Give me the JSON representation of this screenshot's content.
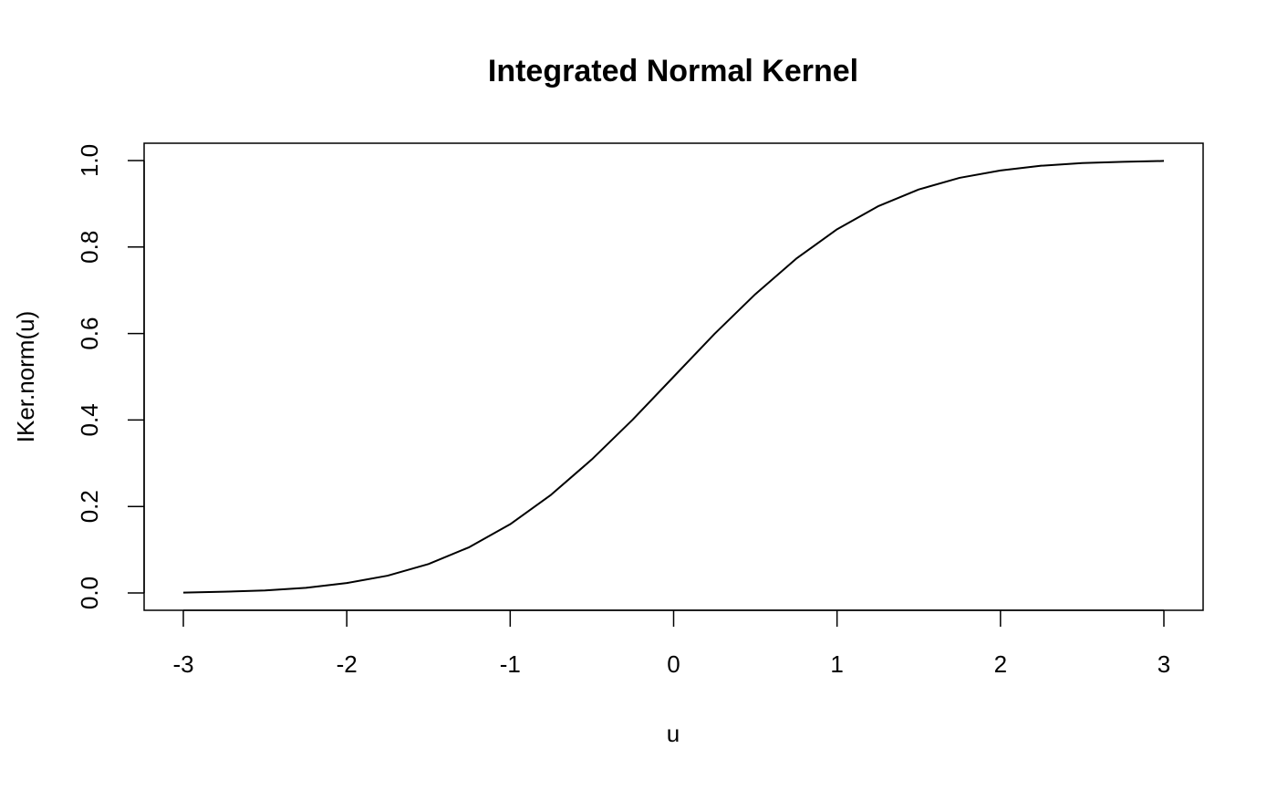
{
  "chart_data": {
    "type": "line",
    "title": "Integrated Normal Kernel",
    "x_label": "u",
    "y_label": "IKer.norm(u)",
    "x": [
      -3,
      -2.75,
      -2.5,
      -2.25,
      -2,
      -1.75,
      -1.5,
      -1.25,
      -1,
      -0.75,
      -0.5,
      -0.25,
      0,
      0.25,
      0.5,
      0.75,
      1,
      1.25,
      1.5,
      1.75,
      2,
      2.25,
      2.5,
      2.75,
      3
    ],
    "series": [
      {
        "color": "#000000",
        "values": [
          0.001,
          0.003,
          0.006,
          0.012,
          0.023,
          0.04,
          0.067,
          0.106,
          0.159,
          0.227,
          0.309,
          0.401,
          0.5,
          0.599,
          0.691,
          0.773,
          0.841,
          0.894,
          0.933,
          0.96,
          0.977,
          0.988,
          0.994,
          0.997,
          0.999
        ]
      }
    ],
    "xlim": [
      -3.24,
      3.24
    ],
    "ylim": [
      -0.04,
      1.04
    ],
    "xticks": [
      -3,
      -2,
      -1,
      0,
      1,
      2,
      3
    ],
    "yticks": [
      {
        "value": 0,
        "label": "0.0"
      },
      {
        "value": 0.2,
        "label": "0.2"
      },
      {
        "value": 0.4,
        "label": "0.4"
      },
      {
        "value": 0.6,
        "label": "0.6"
      },
      {
        "value": 0.8,
        "label": "0.8"
      },
      {
        "value": 1,
        "label": "1.0"
      }
    ],
    "grid": false
  }
}
